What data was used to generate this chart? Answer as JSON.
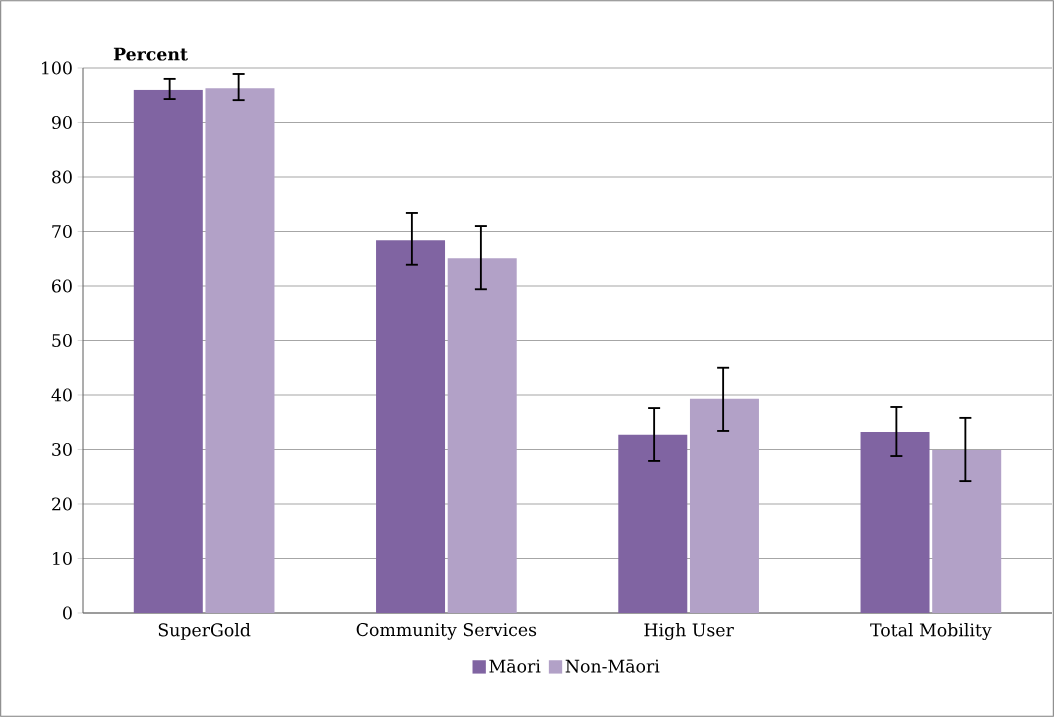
{
  "chart_data": {
    "type": "bar",
    "ylabel": "Percent",
    "categories": [
      "SuperGold",
      "Community Services",
      "High User",
      "Total Mobility"
    ],
    "series": [
      {
        "name": "Māori",
        "color": "#8064a2",
        "values": [
          96.0,
          68.4,
          32.7,
          33.2
        ],
        "errors": [
          [
            94.3,
            98.0
          ],
          [
            63.9,
            73.4
          ],
          [
            27.9,
            37.6
          ],
          [
            28.8,
            37.8
          ]
        ]
      },
      {
        "name": "Non-Māori",
        "color": "#b2a1c7",
        "values": [
          96.3,
          65.1,
          39.3,
          29.9
        ],
        "errors": [
          [
            94.1,
            98.9
          ],
          [
            59.4,
            71.0
          ],
          [
            33.4,
            45.0
          ],
          [
            24.2,
            35.8
          ]
        ]
      }
    ],
    "ylim": [
      0,
      100
    ],
    "yticks": [
      0,
      10,
      20,
      30,
      40,
      50,
      60,
      70,
      80,
      90,
      100
    ],
    "grid": "y",
    "legend": "bottom"
  }
}
